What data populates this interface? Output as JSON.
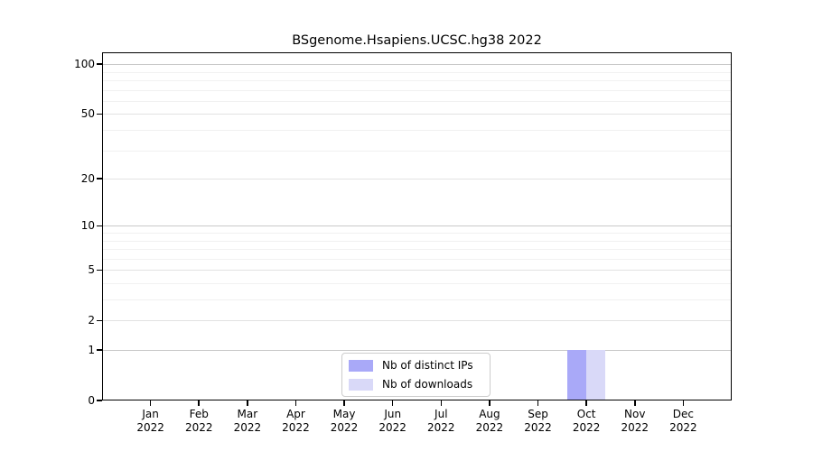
{
  "chart_data": {
    "type": "bar",
    "title": "BSgenome.Hsapiens.UCSC.hg38 2022",
    "xlabel": "",
    "ylabel": "",
    "categories": [
      "Jan 2022",
      "Feb 2022",
      "Mar 2022",
      "Apr 2022",
      "May 2022",
      "Jun 2022",
      "Jul 2022",
      "Aug 2022",
      "Sep 2022",
      "Oct 2022",
      "Nov 2022",
      "Dec 2022"
    ],
    "series": [
      {
        "name": "Nb of distinct IPs",
        "color": "#a9a9f8",
        "values": [
          0,
          0,
          0,
          0,
          0,
          0,
          0,
          0,
          0,
          1,
          0,
          0
        ]
      },
      {
        "name": "Nb of downloads",
        "color": "#d9d9f8",
        "values": [
          0,
          0,
          0,
          0,
          0,
          0,
          0,
          0,
          0,
          1,
          0,
          0
        ]
      }
    ],
    "y_scale": "log10(1+y)",
    "y_ticks": [
      0,
      1,
      2,
      5,
      10,
      20,
      50,
      100
    ],
    "y_decade_ticks": [
      1,
      10,
      100
    ],
    "y_minor_gridlines": [
      3,
      4,
      6,
      7,
      8,
      9,
      30,
      40,
      60,
      70,
      80,
      90
    ],
    "ylim": [
      0,
      117
    ],
    "grid": true,
    "legend_position": "inside-bottom-center"
  },
  "colors": {
    "background": "#ffffff",
    "axis": "#000000",
    "grid_decade": "#c9c9c9",
    "grid_major": "#e2e2e2",
    "grid_minor": "#f1f1f1",
    "bar_distinct_ips": "#a9a9f8",
    "bar_downloads": "#d9d9f8",
    "legend_border": "#cccccc"
  }
}
